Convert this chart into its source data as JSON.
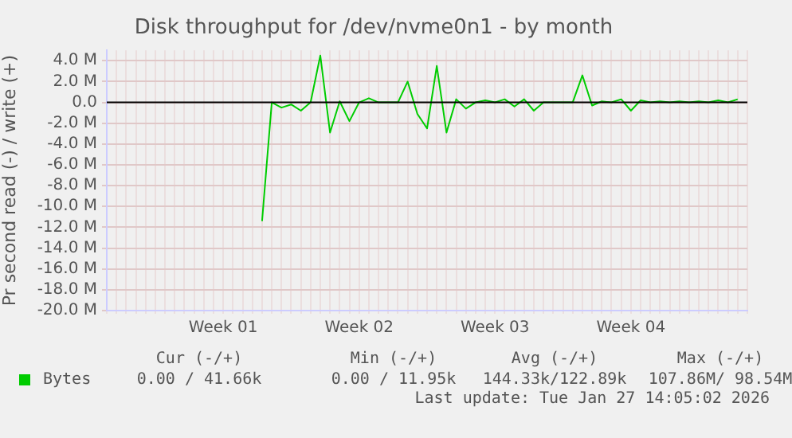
{
  "chart_data": {
    "type": "line",
    "title": "Disk throughput for /dev/nvme0n1 - by month",
    "ylabel": "Pr second read (-) / write (+)",
    "categories": [
      null,
      null,
      null,
      null,
      null,
      null,
      null,
      null,
      null,
      null,
      null,
      null,
      "Week 01",
      null,
      null,
      null,
      null,
      null,
      null,
      null,
      null,
      null,
      null,
      null,
      null,
      null,
      "Week 02",
      null,
      null,
      null,
      null,
      null,
      null,
      null,
      null,
      null,
      null,
      null,
      null,
      null,
      "Week 03",
      null,
      null,
      null,
      null,
      null,
      null,
      null,
      null,
      null,
      null,
      null,
      null,
      null,
      "Week 04",
      null,
      null,
      null,
      null,
      null,
      null,
      null,
      null,
      null,
      null,
      null,
      null
    ],
    "series": [
      {
        "name": "Bytes",
        "color": "#00cc00",
        "values": [
          null,
          null,
          null,
          null,
          null,
          null,
          null,
          null,
          null,
          null,
          null,
          null,
          null,
          null,
          null,
          null,
          -11.4,
          0,
          -0.5,
          -0.2,
          -0.8,
          0,
          4.5,
          -2.9,
          0.1,
          -1.8,
          0,
          0.4,
          0,
          0,
          0,
          2.0,
          -1.1,
          -2.5,
          3.5,
          -2.9,
          0.3,
          -0.6,
          0,
          0.2,
          0,
          0.3,
          -0.4,
          0.3,
          -0.8,
          0,
          0,
          0,
          0,
          2.6,
          -0.3,
          0.1,
          0,
          0.3,
          -0.8,
          0.2,
          0,
          0.1,
          0,
          0.1,
          0,
          0.1,
          0,
          0.2,
          0,
          0.3,
          null
        ]
      }
    ],
    "ylim": [
      -20,
      5
    ],
    "yticks": [
      {
        "value": -20,
        "label": "-20.0 M"
      },
      {
        "value": -18,
        "label": "-18.0 M"
      },
      {
        "value": -16,
        "label": "-16.0 M"
      },
      {
        "value": -14,
        "label": "-14.0 M"
      },
      {
        "value": -12,
        "label": "-12.0 M"
      },
      {
        "value": -10,
        "label": "-10.0 M"
      },
      {
        "value": -8,
        "label": "-8.0 M"
      },
      {
        "value": -6,
        "label": "-6.0 M"
      },
      {
        "value": -4,
        "label": "-4.0 M"
      },
      {
        "value": -2,
        "label": "-2.0 M"
      },
      {
        "value": 0,
        "label": "0.0"
      },
      {
        "value": 2,
        "label": "2.0 M"
      },
      {
        "value": 4,
        "label": "4.0 M"
      }
    ],
    "ref_lines": [
      {
        "axis": "y",
        "value": 0,
        "label": null,
        "color": "#000000"
      }
    ],
    "grid": true,
    "legend": "bottom left",
    "marker": "none",
    "line_style": "solid",
    "annotations": [
      "Cur (-/+)",
      "Min (-/+)",
      "Avg (-/+)",
      "Max (-/+)",
      "0.00 / 41.66k",
      "0.00 / 11.95k",
      "144.33k/122.89k",
      "107.86M/ 98.54M",
      "Last update: Tue Jan 27 14:05:02 2026"
    ]
  }
}
